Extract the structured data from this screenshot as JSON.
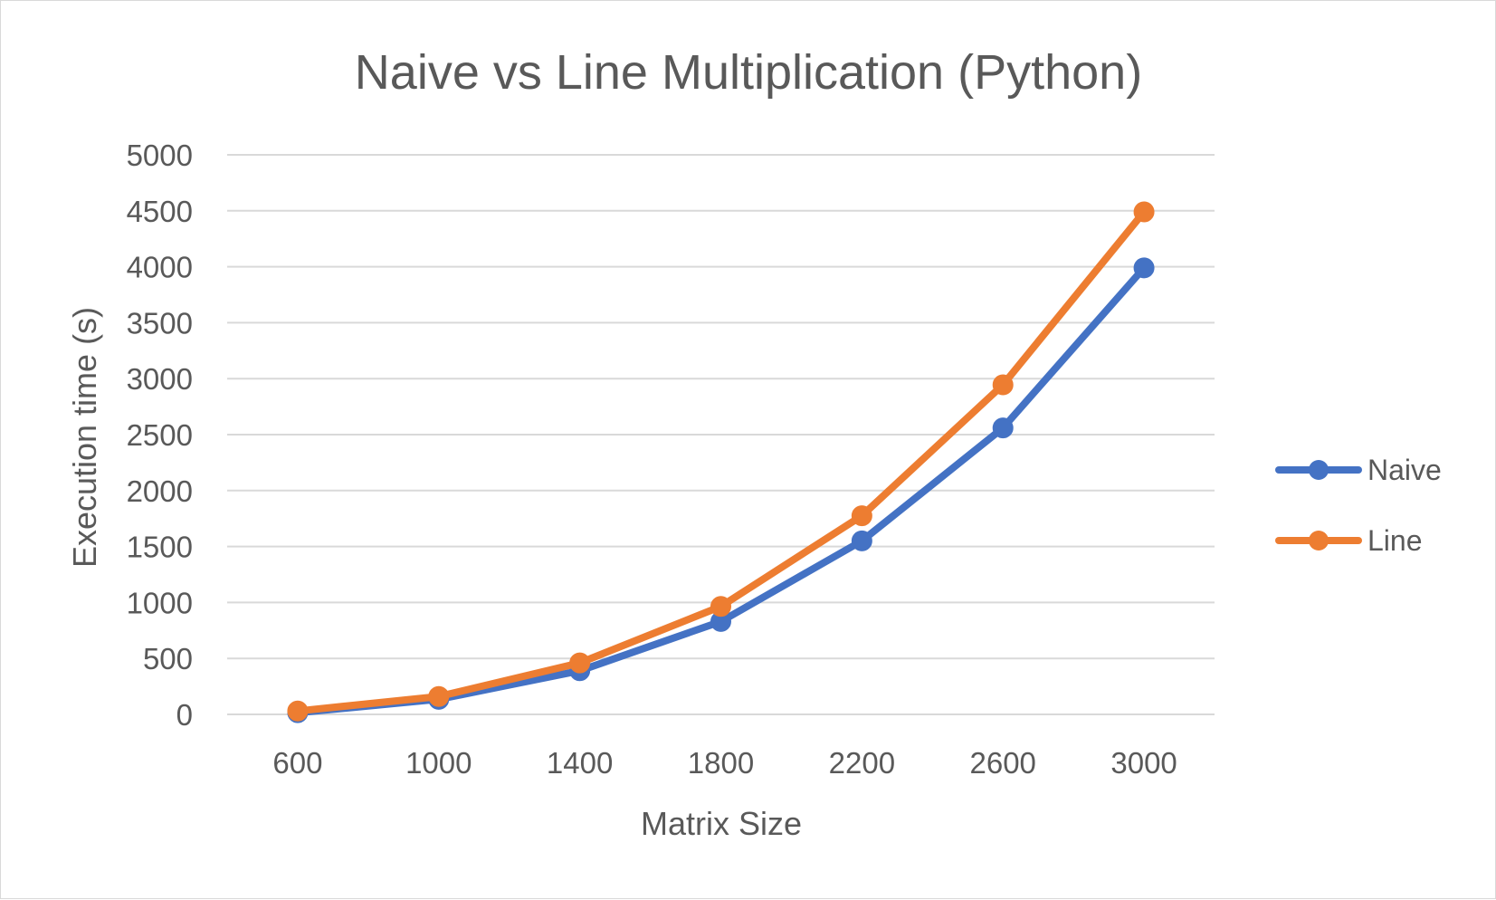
{
  "chart_data": {
    "type": "line",
    "title": "Naive vs Line Multiplication (Python)",
    "xlabel": "Matrix Size",
    "ylabel": "Execution time (s)",
    "categories": [
      "600",
      "1000",
      "1400",
      "1800",
      "2200",
      "2600",
      "3000"
    ],
    "ylim": [
      0,
      5000
    ],
    "yticks": [
      "0",
      "500",
      "1000",
      "1500",
      "2000",
      "2500",
      "3000",
      "3500",
      "4000",
      "4500",
      "5000"
    ],
    "grid": true,
    "legend_position": "right",
    "series": [
      {
        "name": "Naive",
        "color": "#4472C4",
        "values": [
          15,
          135,
          390,
          830,
          1550,
          2560,
          3990
        ]
      },
      {
        "name": "Line",
        "color": "#ED7D31",
        "values": [
          30,
          160,
          460,
          965,
          1775,
          2945,
          4490
        ]
      }
    ]
  }
}
